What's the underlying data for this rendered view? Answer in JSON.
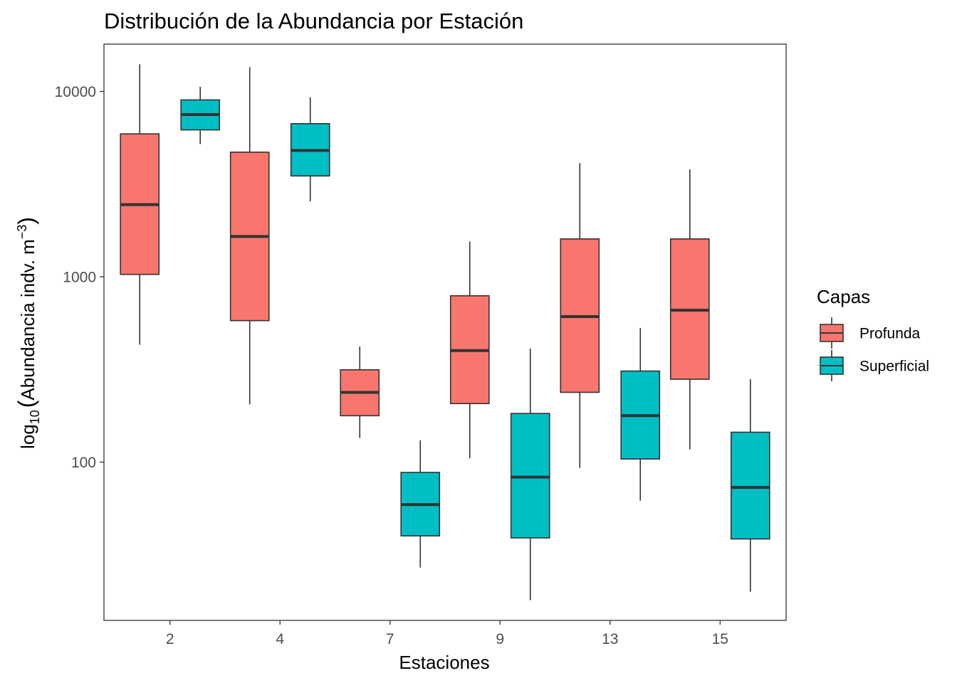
{
  "chart_data": {
    "type": "boxplot",
    "title": "Distribución de la Abundancia por Estación",
    "xlabel": "Estaciones",
    "ylabel": {
      "prefix": "log",
      "sub": "10",
      "paren_open": "(",
      "main": "Abundancia indv. m",
      "sup": "−3",
      "paren_close": ")"
    },
    "y_scale": "log10",
    "ylim": [
      14,
      18000
    ],
    "y_ticks": [
      {
        "value": 100,
        "label": "100"
      },
      {
        "value": 1000,
        "label": "1000"
      },
      {
        "value": 10000,
        "label": "10000"
      }
    ],
    "categories": [
      "2",
      "4",
      "7",
      "9",
      "13",
      "15"
    ],
    "legend": {
      "title": "Capas",
      "position": "right",
      "entries": [
        "Profunda",
        "Superficial"
      ]
    },
    "grid": false,
    "series": [
      {
        "name": "Profunda",
        "color": "#F8766D",
        "boxes": [
          {
            "category": "2",
            "min": 430,
            "q1": 1030,
            "median": 2450,
            "q3": 5900,
            "max": 14000
          },
          {
            "category": "4",
            "min": 205,
            "q1": 580,
            "median": 1650,
            "q3": 4700,
            "max": 13500
          },
          {
            "category": "7",
            "min": 135,
            "q1": 178,
            "median": 238,
            "q3": 315,
            "max": 420
          },
          {
            "category": "9",
            "min": 105,
            "q1": 207,
            "median": 400,
            "q3": 790,
            "max": 1550
          },
          {
            "category": "13",
            "min": 93,
            "q1": 238,
            "median": 610,
            "q3": 1600,
            "max": 4100
          },
          {
            "category": "15",
            "min": 117,
            "q1": 280,
            "median": 660,
            "q3": 1600,
            "max": 3800
          }
        ]
      },
      {
        "name": "Superficial",
        "color": "#00BFC4",
        "boxes": [
          {
            "category": "2",
            "min": 5200,
            "q1": 6200,
            "median": 7500,
            "q3": 9000,
            "max": 10600
          },
          {
            "category": "4",
            "min": 2550,
            "q1": 3500,
            "median": 4800,
            "q3": 6700,
            "max": 9300
          },
          {
            "category": "7",
            "min": 27,
            "q1": 40,
            "median": 59,
            "q3": 88,
            "max": 131
          },
          {
            "category": "9",
            "min": 18,
            "q1": 39,
            "median": 83,
            "q3": 183,
            "max": 410
          },
          {
            "category": "13",
            "min": 62,
            "q1": 104,
            "median": 178,
            "q3": 310,
            "max": 530
          },
          {
            "category": "15",
            "min": 20,
            "q1": 38.5,
            "median": 73,
            "q3": 145,
            "max": 280
          }
        ]
      }
    ]
  }
}
